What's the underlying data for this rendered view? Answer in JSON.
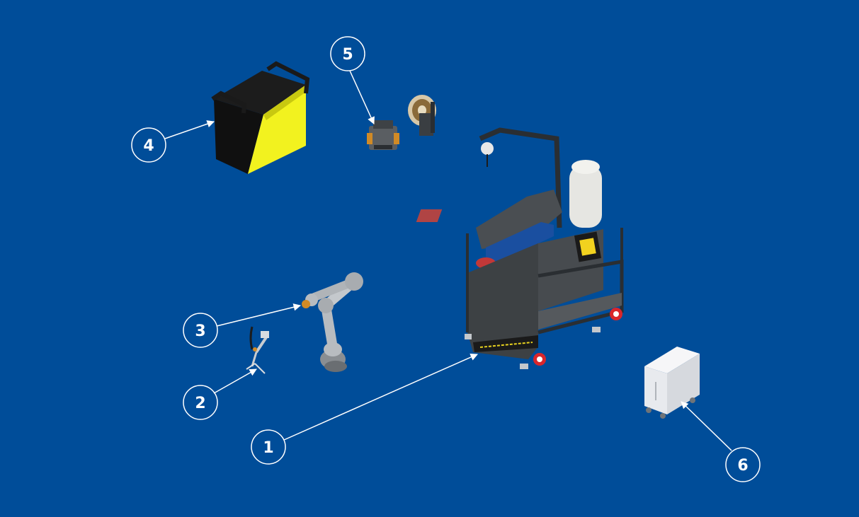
{
  "colors": {
    "background": "#004d99",
    "callout": "#ffffff",
    "power_source_face": "#f2f21f",
    "cart_body": "#3d4144",
    "wheel": "#d9262b"
  },
  "callouts": [
    {
      "number": "1",
      "component": "welding-cart"
    },
    {
      "number": "2",
      "component": "welding-torch"
    },
    {
      "number": "3",
      "component": "robot-arm"
    },
    {
      "number": "4",
      "component": "power-source"
    },
    {
      "number": "5",
      "component": "wire-feeder"
    },
    {
      "number": "6",
      "component": "cooling-unit"
    }
  ]
}
